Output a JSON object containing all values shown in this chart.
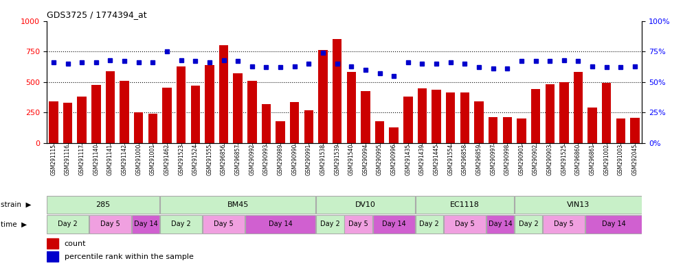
{
  "title": "GDS3725 / 1774394_at",
  "samples": [
    "GSM291115",
    "GSM291116",
    "GSM291117",
    "GSM291140",
    "GSM291141",
    "GSM291142",
    "GSM291000",
    "GSM291001",
    "GSM291462",
    "GSM291523",
    "GSM291524",
    "GSM291555",
    "GSM296856",
    "GSM296857",
    "GSM290992",
    "GSM290993",
    "GSM290989",
    "GSM290990",
    "GSM290991",
    "GSM291538",
    "GSM291539",
    "GSM291540",
    "GSM290994",
    "GSM290995",
    "GSM290996",
    "GSM291435",
    "GSM291439",
    "GSM291445",
    "GSM291554",
    "GSM296858",
    "GSM296859",
    "GSM290997",
    "GSM290998",
    "GSM290901",
    "GSM290902",
    "GSM290903",
    "GSM291525",
    "GSM296860",
    "GSM296861",
    "GSM291002",
    "GSM291003",
    "GSM292045"
  ],
  "counts": [
    340,
    330,
    380,
    475,
    590,
    510,
    250,
    240,
    455,
    630,
    470,
    640,
    800,
    570,
    510,
    320,
    175,
    335,
    270,
    760,
    850,
    580,
    425,
    175,
    125,
    380,
    450,
    435,
    415,
    415,
    340,
    210,
    210,
    200,
    440,
    480,
    500,
    580,
    290,
    490,
    200,
    205
  ],
  "percentiles": [
    66,
    65,
    66,
    66,
    68,
    67,
    66,
    66,
    75,
    68,
    67,
    66,
    68,
    67,
    63,
    62,
    62,
    63,
    65,
    74,
    65,
    63,
    60,
    57,
    55,
    66,
    65,
    65,
    66,
    65,
    62,
    61,
    61,
    67,
    67,
    67,
    68,
    67,
    63,
    62,
    62,
    63
  ],
  "strains": [
    {
      "label": "285",
      "start": 0,
      "end": 8
    },
    {
      "label": "BM45",
      "start": 8,
      "end": 19
    },
    {
      "label": "DV10",
      "start": 19,
      "end": 26
    },
    {
      "label": "EC1118",
      "start": 26,
      "end": 33
    },
    {
      "label": "VIN13",
      "start": 33,
      "end": 42
    }
  ],
  "time_groups": [
    {
      "label": "Day 2",
      "start": 0,
      "end": 3
    },
    {
      "label": "Day 5",
      "start": 3,
      "end": 6
    },
    {
      "label": "Day 14",
      "start": 6,
      "end": 8
    },
    {
      "label": "Day 2",
      "start": 8,
      "end": 11
    },
    {
      "label": "Day 5",
      "start": 11,
      "end": 14
    },
    {
      "label": "Day 14",
      "start": 14,
      "end": 19
    },
    {
      "label": "Day 2",
      "start": 19,
      "end": 21
    },
    {
      "label": "Day 5",
      "start": 21,
      "end": 23
    },
    {
      "label": "Day 14",
      "start": 23,
      "end": 26
    },
    {
      "label": "Day 2",
      "start": 26,
      "end": 28
    },
    {
      "label": "Day 5",
      "start": 28,
      "end": 31
    },
    {
      "label": "Day 14",
      "start": 31,
      "end": 33
    },
    {
      "label": "Day 2",
      "start": 33,
      "end": 35
    },
    {
      "label": "Day 5",
      "start": 35,
      "end": 38
    },
    {
      "label": "Day 14",
      "start": 38,
      "end": 42
    }
  ],
  "bar_color": "#CC0000",
  "dot_color": "#0000CC",
  "ylim_left": [
    0,
    1000
  ],
  "ylim_right": [
    0,
    100
  ],
  "yticks_left": [
    0,
    250,
    500,
    750,
    1000
  ],
  "yticks_right": [
    0,
    25,
    50,
    75,
    100
  ],
  "strain_color": "#c8f0c8",
  "time_colors": {
    "Day 2": "#c8f0c8",
    "Day 5": "#f0a0e0",
    "Day 14": "#d060d0"
  },
  "bg_color": "#f0f0f0"
}
